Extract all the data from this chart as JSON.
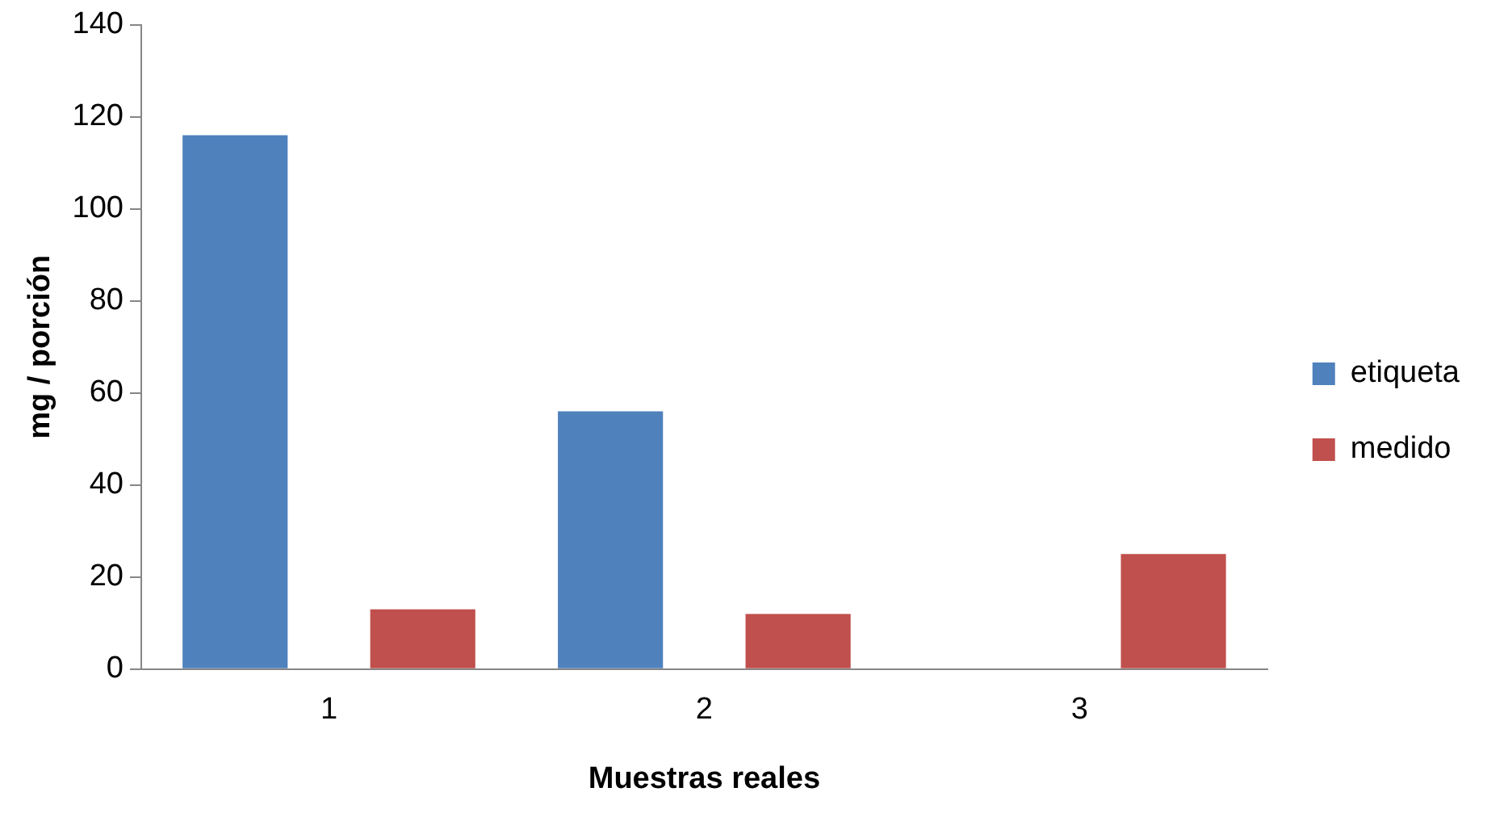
{
  "chart_data": {
    "type": "bar",
    "xlabel": "Muestras reales",
    "ylabel": "mg / porción",
    "categories": [
      "1",
      "2",
      "3"
    ],
    "series": [
      {
        "name": "etiqueta",
        "color": "#4f81bd",
        "values": [
          116,
          56,
          null
        ]
      },
      {
        "name": "medido",
        "color": "#c0504d",
        "values": [
          13,
          12,
          25
        ]
      }
    ],
    "ylim": [
      0,
      140
    ],
    "yticks": [
      0,
      20,
      40,
      60,
      80,
      100,
      120,
      140
    ],
    "grid": false,
    "legend": "right"
  }
}
